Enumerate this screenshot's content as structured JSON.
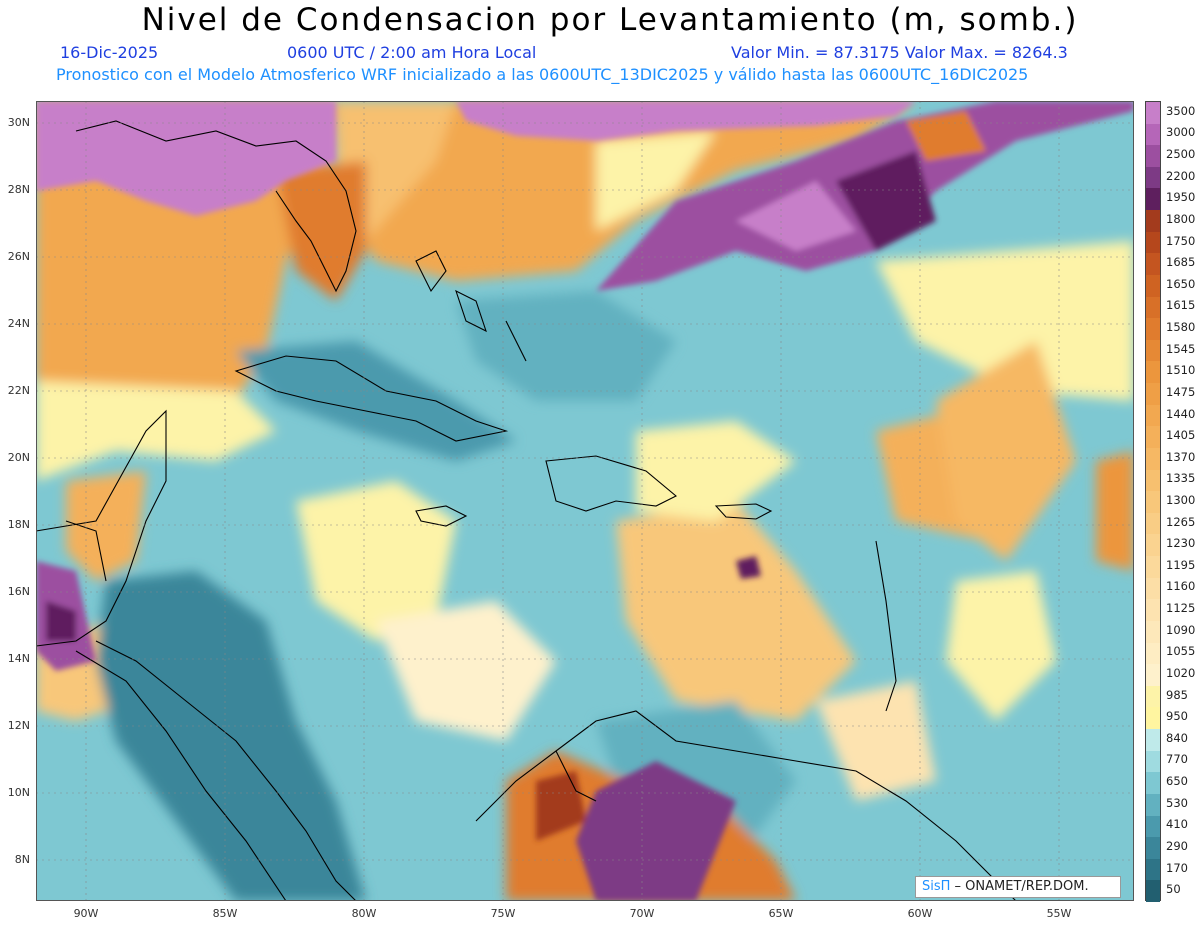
{
  "header": {
    "title": "Nivel de Condensacion por Levantamiento (m, somb.)",
    "date": "16-Dic-2025",
    "time": "0600 UTC / 2:00 am Hora Local",
    "minmax": "Valor Min. = 87.3175  Valor Max. = 8264.3",
    "model_info": "Pronostico con el Modelo Atmosferico WRF inicializado a las 0600UTC_13DIC2025 y válido hasta las  0600UTC_16DIC2025"
  },
  "axes": {
    "lat_labels": [
      "30N",
      "28N",
      "26N",
      "24N",
      "22N",
      "20N",
      "18N",
      "16N",
      "14N",
      "12N",
      "10N",
      "8N"
    ],
    "lon_labels": [
      "90W",
      "85W",
      "80W",
      "75W",
      "70W",
      "65W",
      "60W",
      "55W"
    ]
  },
  "colorbar": {
    "labels": [
      "3500",
      "3000",
      "2500",
      "2200",
      "1950",
      "1800",
      "1750",
      "1685",
      "1650",
      "1615",
      "1580",
      "1545",
      "1510",
      "1475",
      "1440",
      "1405",
      "1370",
      "1335",
      "1300",
      "1265",
      "1230",
      "1195",
      "1160",
      "1125",
      "1090",
      "1055",
      "1020",
      "985",
      "950",
      "840",
      "770",
      "650",
      "530",
      "410",
      "290",
      "170",
      "50"
    ],
    "colors": [
      "#c77fc9",
      "#b566b8",
      "#9c4fa0",
      "#7d3a85",
      "#5e1f5e",
      "#a33b1d",
      "#b5471c",
      "#c45520",
      "#cf6322",
      "#d87028",
      "#e07c2e",
      "#e68935",
      "#ec963d",
      "#ef9f46",
      "#f2a850",
      "#f4b05a",
      "#f6b864",
      "#f7c06f",
      "#f8c77a",
      "#f9cd85",
      "#fad390",
      "#fbd99b",
      "#fcdea6",
      "#fde3b0",
      "#fde8ba",
      "#feedc3",
      "#fef1cc",
      "#fdf3a8",
      "#fff5a0",
      "#bfeaea",
      "#9fdbe0",
      "#7ec8d2",
      "#62b1c0",
      "#4b9aad",
      "#3b869a",
      "#2e7487",
      "#225f70"
    ]
  },
  "legend_bg": {
    "sea_base": "#7ec8d2",
    "warm": "#f2a850",
    "yellow": "#fdf3a8",
    "purple": "#b566b8",
    "deep": "#5e1f5e",
    "teal_dark": "#3b869a"
  },
  "brand": {
    "logo": "SisΠ",
    "text": " – ONAMET/REP.DOM."
  }
}
